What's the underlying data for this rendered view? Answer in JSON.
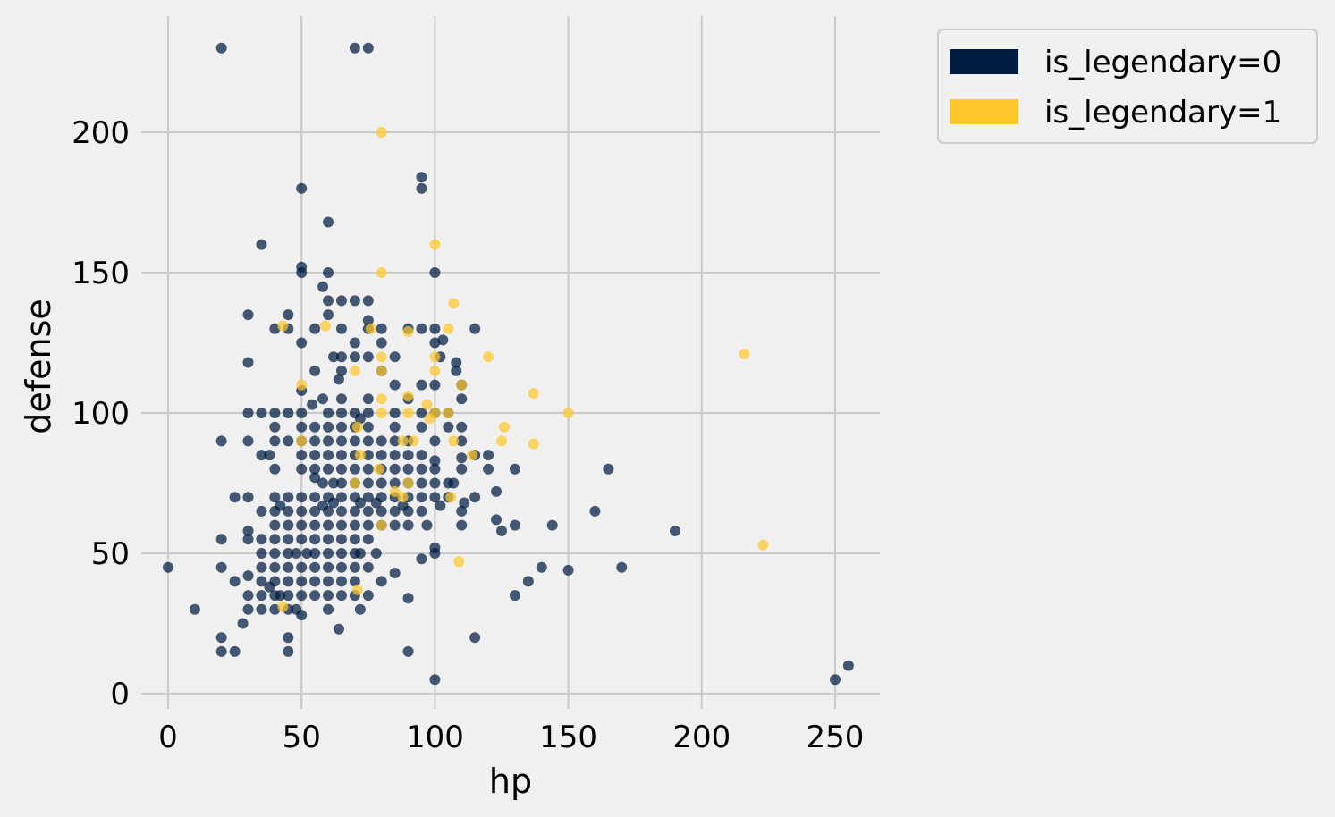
{
  "chart_data": {
    "type": "scatter",
    "title": "",
    "xlabel": "hp",
    "ylabel": "defense",
    "xlim": [
      -10,
      266
    ],
    "ylim": [
      -5,
      243
    ],
    "xticks": [
      0,
      50,
      100,
      150,
      200,
      250
    ],
    "yticks": [
      0,
      50,
      100,
      150,
      200
    ],
    "grid": true,
    "legend_position": "outside-top-right",
    "series": [
      {
        "name": "is_legendary=0",
        "color": "#001c43",
        "points": [
          [
            20,
            230
          ],
          [
            70,
            230
          ],
          [
            75,
            230
          ],
          [
            95,
            184
          ],
          [
            95,
            180
          ],
          [
            50,
            180
          ],
          [
            60,
            168
          ],
          [
            35,
            160
          ],
          [
            50,
            152
          ],
          [
            50,
            150
          ],
          [
            60,
            150
          ],
          [
            100,
            150
          ],
          [
            58,
            145
          ],
          [
            60,
            140
          ],
          [
            65,
            140
          ],
          [
            70,
            140
          ],
          [
            75,
            140
          ],
          [
            30,
            135
          ],
          [
            45,
            135
          ],
          [
            60,
            135
          ],
          [
            75,
            133
          ],
          [
            40,
            130
          ],
          [
            45,
            130
          ],
          [
            55,
            130
          ],
          [
            65,
            130
          ],
          [
            75,
            130
          ],
          [
            80,
            130
          ],
          [
            90,
            130
          ],
          [
            95,
            130
          ],
          [
            100,
            130
          ],
          [
            115,
            130
          ],
          [
            50,
            125
          ],
          [
            70,
            125
          ],
          [
            80,
            125
          ],
          [
            100,
            125
          ],
          [
            103,
            126
          ],
          [
            62,
            120
          ],
          [
            65,
            120
          ],
          [
            70,
            120
          ],
          [
            75,
            120
          ],
          [
            85,
            120
          ],
          [
            102,
            120
          ],
          [
            108,
            118
          ],
          [
            30,
            118
          ],
          [
            55,
            115
          ],
          [
            65,
            115
          ],
          [
            80,
            115
          ],
          [
            108,
            115
          ],
          [
            64,
            112
          ],
          [
            85,
            110
          ],
          [
            95,
            110
          ],
          [
            100,
            110
          ],
          [
            110,
            110
          ],
          [
            50,
            108
          ],
          [
            54,
            103
          ],
          [
            58,
            105
          ],
          [
            65,
            105
          ],
          [
            75,
            105
          ],
          [
            90,
            105
          ],
          [
            110,
            105
          ],
          [
            30,
            100
          ],
          [
            35,
            100
          ],
          [
            40,
            100
          ],
          [
            45,
            100
          ],
          [
            50,
            100
          ],
          [
            60,
            100
          ],
          [
            65,
            100
          ],
          [
            70,
            100
          ],
          [
            75,
            100
          ],
          [
            85,
            100
          ],
          [
            95,
            100
          ],
          [
            100,
            100
          ],
          [
            105,
            100
          ],
          [
            72,
            98
          ],
          [
            40,
            95
          ],
          [
            50,
            95
          ],
          [
            55,
            95
          ],
          [
            60,
            95
          ],
          [
            65,
            95
          ],
          [
            70,
            95
          ],
          [
            75,
            95
          ],
          [
            85,
            95
          ],
          [
            95,
            95
          ],
          [
            105,
            95
          ],
          [
            110,
            95
          ],
          [
            20,
            90
          ],
          [
            30,
            90
          ],
          [
            40,
            90
          ],
          [
            45,
            90
          ],
          [
            50,
            90
          ],
          [
            55,
            90
          ],
          [
            60,
            90
          ],
          [
            65,
            90
          ],
          [
            70,
            90
          ],
          [
            75,
            90
          ],
          [
            80,
            90
          ],
          [
            85,
            90
          ],
          [
            90,
            90
          ],
          [
            100,
            90
          ],
          [
            110,
            90
          ],
          [
            35,
            85
          ],
          [
            38,
            85
          ],
          [
            50,
            85
          ],
          [
            55,
            85
          ],
          [
            60,
            85
          ],
          [
            65,
            85
          ],
          [
            70,
            85
          ],
          [
            75,
            85
          ],
          [
            80,
            85
          ],
          [
            85,
            85
          ],
          [
            90,
            85
          ],
          [
            95,
            85
          ],
          [
            100,
            83
          ],
          [
            110,
            84
          ],
          [
            120,
            85
          ],
          [
            115,
            85
          ],
          [
            40,
            80
          ],
          [
            50,
            80
          ],
          [
            55,
            80
          ],
          [
            60,
            80
          ],
          [
            65,
            80
          ],
          [
            70,
            80
          ],
          [
            75,
            80
          ],
          [
            80,
            80
          ],
          [
            85,
            80
          ],
          [
            90,
            80
          ],
          [
            95,
            80
          ],
          [
            100,
            80
          ],
          [
            110,
            80
          ],
          [
            120,
            80
          ],
          [
            130,
            80
          ],
          [
            165,
            80
          ],
          [
            55,
            77
          ],
          [
            58,
            75
          ],
          [
            62,
            75
          ],
          [
            65,
            75
          ],
          [
            70,
            75
          ],
          [
            75,
            75
          ],
          [
            80,
            75
          ],
          [
            85,
            75
          ],
          [
            90,
            75
          ],
          [
            95,
            75
          ],
          [
            100,
            75
          ],
          [
            105,
            75
          ],
          [
            107,
            75
          ],
          [
            25,
            70
          ],
          [
            30,
            70
          ],
          [
            40,
            70
          ],
          [
            45,
            70
          ],
          [
            50,
            70
          ],
          [
            55,
            70
          ],
          [
            60,
            70
          ],
          [
            65,
            70
          ],
          [
            70,
            70
          ],
          [
            75,
            70
          ],
          [
            80,
            70
          ],
          [
            85,
            70
          ],
          [
            90,
            70
          ],
          [
            95,
            70
          ],
          [
            100,
            70
          ],
          [
            105,
            70
          ],
          [
            115,
            70
          ],
          [
            123,
            72
          ],
          [
            42,
            67
          ],
          [
            58,
            67
          ],
          [
            62,
            68
          ],
          [
            72,
            68
          ],
          [
            78,
            68
          ],
          [
            88,
            67
          ],
          [
            102,
            67
          ],
          [
            111,
            68
          ],
          [
            35,
            65
          ],
          [
            40,
            65
          ],
          [
            45,
            65
          ],
          [
            50,
            65
          ],
          [
            55,
            65
          ],
          [
            60,
            65
          ],
          [
            65,
            65
          ],
          [
            70,
            65
          ],
          [
            75,
            65
          ],
          [
            80,
            65
          ],
          [
            85,
            65
          ],
          [
            90,
            65
          ],
          [
            95,
            65
          ],
          [
            110,
            65
          ],
          [
            160,
            65
          ],
          [
            123,
            62
          ],
          [
            40,
            60
          ],
          [
            45,
            60
          ],
          [
            50,
            60
          ],
          [
            55,
            60
          ],
          [
            60,
            60
          ],
          [
            65,
            60
          ],
          [
            70,
            60
          ],
          [
            75,
            60
          ],
          [
            80,
            60
          ],
          [
            85,
            60
          ],
          [
            90,
            60
          ],
          [
            97,
            60
          ],
          [
            110,
            60
          ],
          [
            130,
            60
          ],
          [
            144,
            60
          ],
          [
            30,
            58
          ],
          [
            20,
            55
          ],
          [
            30,
            55
          ],
          [
            35,
            55
          ],
          [
            40,
            55
          ],
          [
            45,
            55
          ],
          [
            50,
            55
          ],
          [
            55,
            55
          ],
          [
            60,
            55
          ],
          [
            65,
            55
          ],
          [
            70,
            55
          ],
          [
            75,
            55
          ],
          [
            125,
            58
          ],
          [
            190,
            58
          ],
          [
            35,
            50
          ],
          [
            40,
            50
          ],
          [
            45,
            50
          ],
          [
            48,
            50
          ],
          [
            52,
            50
          ],
          [
            55,
            50
          ],
          [
            60,
            50
          ],
          [
            65,
            50
          ],
          [
            70,
            50
          ],
          [
            72,
            50
          ],
          [
            78,
            50
          ],
          [
            100,
            50
          ],
          [
            100,
            52
          ],
          [
            95,
            48
          ],
          [
            35,
            45
          ],
          [
            40,
            45
          ],
          [
            45,
            45
          ],
          [
            50,
            45
          ],
          [
            55,
            45
          ],
          [
            60,
            45
          ],
          [
            65,
            45
          ],
          [
            70,
            45
          ],
          [
            75,
            45
          ],
          [
            20,
            45
          ],
          [
            0,
            45
          ],
          [
            140,
            45
          ],
          [
            150,
            44
          ],
          [
            170,
            45
          ],
          [
            30,
            42
          ],
          [
            35,
            40
          ],
          [
            40,
            40
          ],
          [
            45,
            40
          ],
          [
            50,
            40
          ],
          [
            55,
            40
          ],
          [
            60,
            40
          ],
          [
            65,
            40
          ],
          [
            70,
            40
          ],
          [
            80,
            40
          ],
          [
            135,
            40
          ],
          [
            25,
            40
          ],
          [
            85,
            43
          ],
          [
            38,
            38
          ],
          [
            42,
            35
          ],
          [
            30,
            35
          ],
          [
            35,
            35
          ],
          [
            40,
            35
          ],
          [
            45,
            35
          ],
          [
            50,
            35
          ],
          [
            55,
            35
          ],
          [
            60,
            35
          ],
          [
            65,
            35
          ],
          [
            70,
            35
          ],
          [
            75,
            35
          ],
          [
            90,
            34
          ],
          [
            130,
            35
          ],
          [
            10,
            30
          ],
          [
            30,
            30
          ],
          [
            35,
            30
          ],
          [
            40,
            30
          ],
          [
            45,
            30
          ],
          [
            48,
            30
          ],
          [
            60,
            30
          ],
          [
            72,
            30
          ],
          [
            50,
            28
          ],
          [
            28,
            25
          ],
          [
            64,
            23
          ],
          [
            20,
            20
          ],
          [
            45,
            20
          ],
          [
            115,
            20
          ],
          [
            20,
            15
          ],
          [
            25,
            15
          ],
          [
            45,
            15
          ],
          [
            90,
            15
          ],
          [
            100,
            5
          ],
          [
            250,
            5
          ],
          [
            255,
            10
          ]
        ]
      },
      {
        "name": "is_legendary=1",
        "color": "#ffc72c",
        "points": [
          [
            80,
            200
          ],
          [
            100,
            160
          ],
          [
            80,
            150
          ],
          [
            107,
            139
          ],
          [
            43,
            131
          ],
          [
            59,
            131
          ],
          [
            76,
            130
          ],
          [
            90,
            129
          ],
          [
            105,
            130
          ],
          [
            80,
            120
          ],
          [
            100,
            120
          ],
          [
            120,
            120
          ],
          [
            216,
            121
          ],
          [
            100,
            115
          ],
          [
            70,
            115
          ],
          [
            80,
            115
          ],
          [
            50,
            110
          ],
          [
            110,
            110
          ],
          [
            137,
            107
          ],
          [
            90,
            106
          ],
          [
            80,
            105
          ],
          [
            97,
            103
          ],
          [
            80,
            100
          ],
          [
            90,
            100
          ],
          [
            100,
            100
          ],
          [
            105,
            100
          ],
          [
            150,
            100
          ],
          [
            98,
            98
          ],
          [
            126,
            95
          ],
          [
            71,
            95
          ],
          [
            50,
            90
          ],
          [
            88,
            90
          ],
          [
            92,
            90
          ],
          [
            107,
            90
          ],
          [
            125,
            90
          ],
          [
            137,
            89
          ],
          [
            114,
            85
          ],
          [
            72,
            85
          ],
          [
            79,
            80
          ],
          [
            90,
            75
          ],
          [
            70,
            75
          ],
          [
            85,
            72
          ],
          [
            106,
            70
          ],
          [
            88,
            70
          ],
          [
            80,
            60
          ],
          [
            223,
            53
          ],
          [
            109,
            47
          ],
          [
            71,
            37
          ],
          [
            43,
            31
          ]
        ]
      }
    ]
  }
}
